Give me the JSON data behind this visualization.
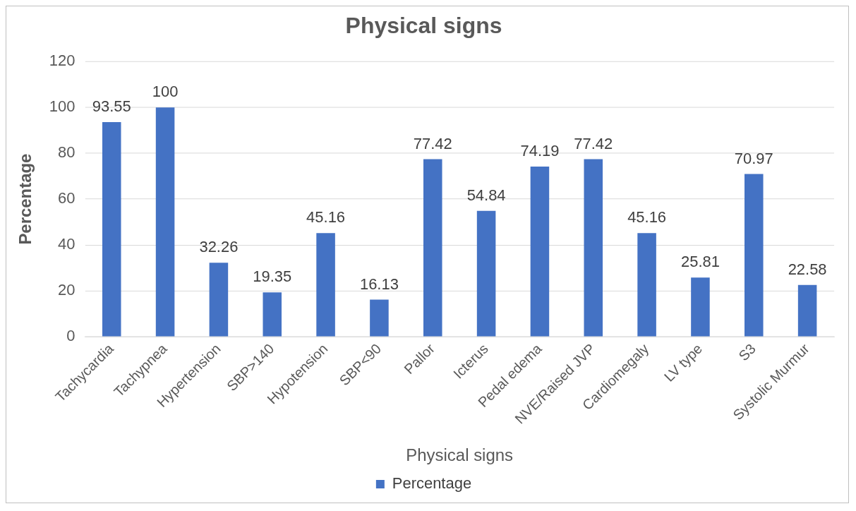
{
  "chart_data": {
    "type": "bar",
    "title": "Physical signs",
    "xlabel": "Physical signs",
    "ylabel": "Percentage",
    "categories": [
      "Tachycardia",
      "Tachypnea",
      "Hypertension",
      "SBP>140",
      "Hypotension",
      "SBP<90",
      "Pallor",
      "Icterus",
      "Pedal edema",
      "NVE/Raised JVP",
      "Cardiomegaly",
      "LV type",
      "S3",
      "Systolic Murmur"
    ],
    "series": [
      {
        "name": "Percentage",
        "color": "#4472c4",
        "values": [
          93.55,
          100,
          32.26,
          19.35,
          45.16,
          16.13,
          77.42,
          54.84,
          74.19,
          77.42,
          45.16,
          25.81,
          70.97,
          22.58
        ]
      }
    ],
    "ylim": [
      0,
      120
    ],
    "yticks": [
      0,
      20,
      40,
      60,
      80,
      100,
      120
    ],
    "grid": "y",
    "legend": "bottom",
    "data_labels": true
  }
}
